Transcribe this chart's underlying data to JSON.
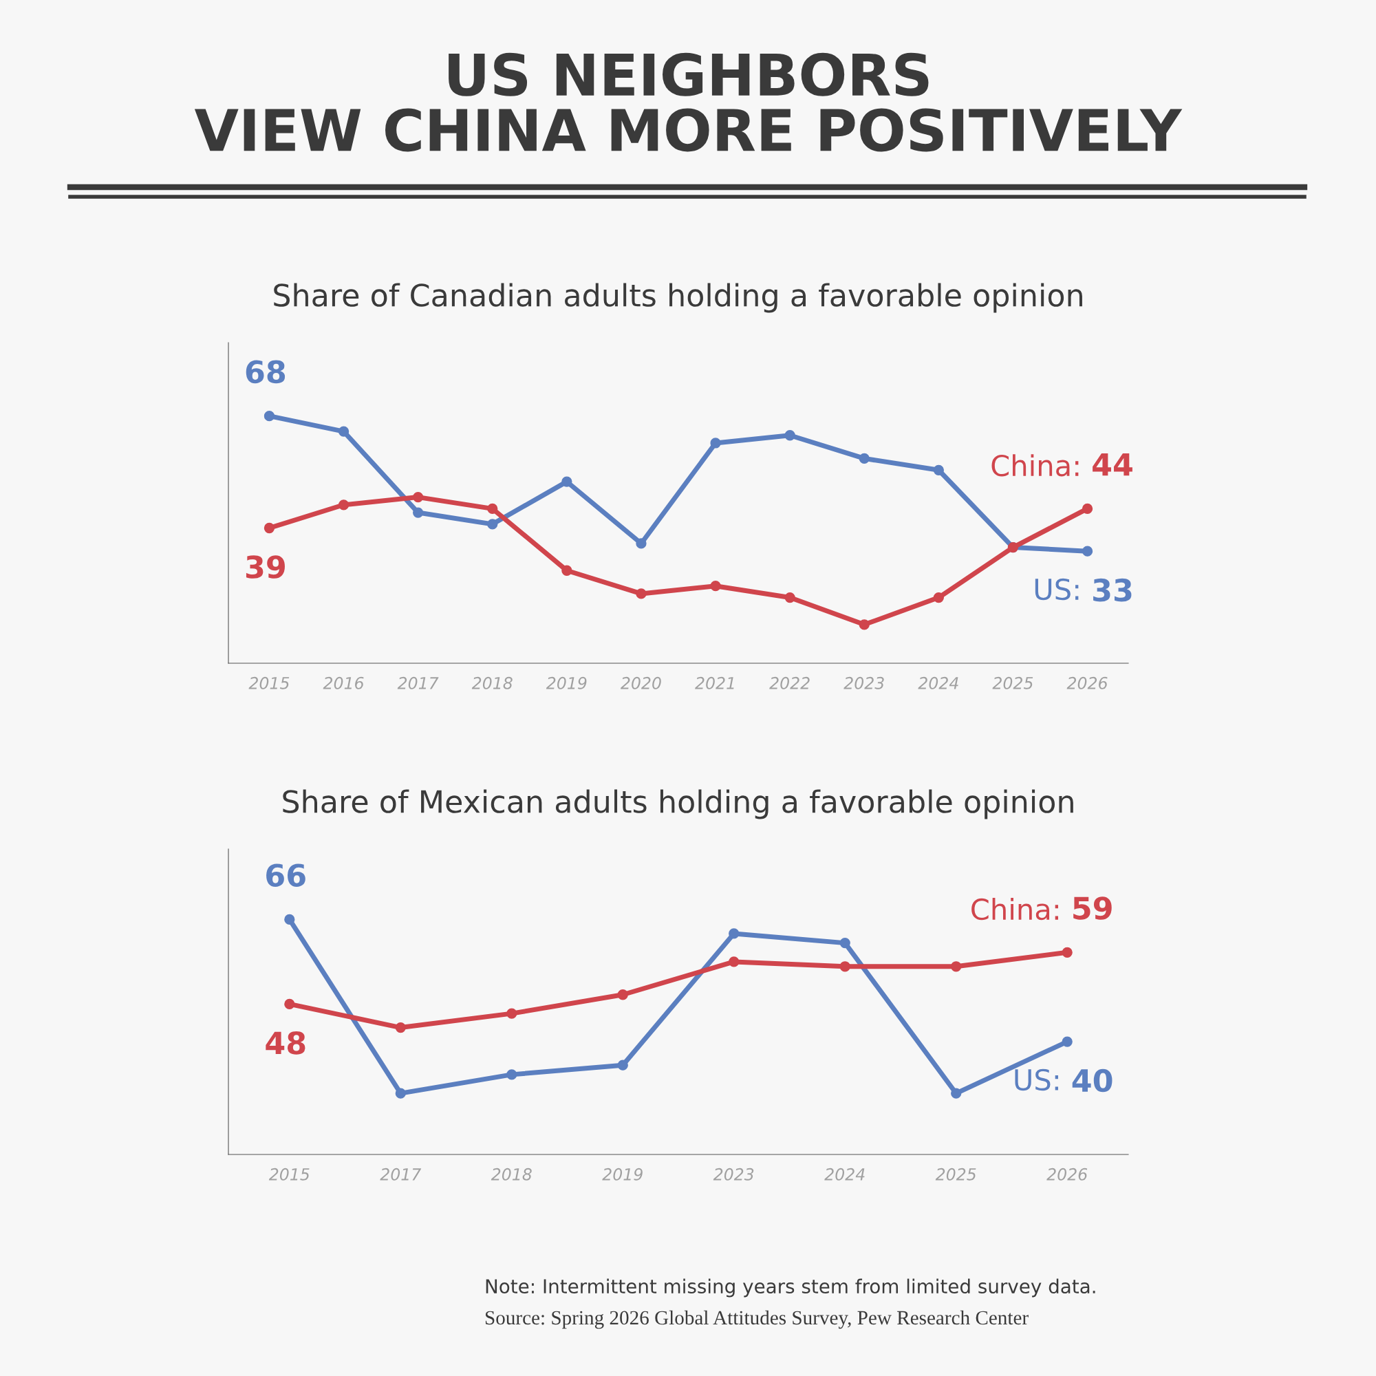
{
  "chart_data": [
    {
      "type": "line",
      "title": "US NEIGHBORS\nVIEW CHINA MORE POSITIVELY",
      "subtitle": "Share of Canadian adults holding a favorable opinion",
      "categories": [
        "2015",
        "2016",
        "2017",
        "2018",
        "2019",
        "2020",
        "2021",
        "2022",
        "2023",
        "2024",
        "2025",
        "2026"
      ],
      "series": [
        {
          "name": "US:",
          "color": "#5b7fc0",
          "values": [
            68,
            64,
            43,
            40,
            51,
            35,
            61,
            63,
            57,
            54,
            34,
            33
          ],
          "value_labels": [
            "68",
            null,
            null,
            null,
            null,
            null,
            null,
            null,
            null,
            null,
            null,
            "33"
          ]
        },
        {
          "name": "China:",
          "color": "#d0454c",
          "values": [
            39,
            45,
            47,
            44,
            28,
            22,
            24,
            21,
            14,
            21,
            34,
            44
          ],
          "value_labels": [
            "39",
            null,
            null,
            null,
            null,
            null,
            null,
            null,
            null,
            null,
            null,
            "44"
          ]
        }
      ],
      "ylim": [
        4,
        87
      ],
      "tick_labels": "x",
      "marker": "circle",
      "line_style": "solid",
      "grid": false,
      "legend": false
    },
    {
      "type": "line",
      "title": "Share of Mexican adults holding a favorable opinion",
      "categories": [
        "2015",
        "2017",
        "2018",
        "2019",
        "2023",
        "2024",
        "2025",
        "2026"
      ],
      "series": [
        {
          "name": "US:",
          "color": "#5b7fc0",
          "values": [
            66,
            29,
            33,
            35,
            63,
            61,
            29,
            40
          ],
          "value_labels": [
            "66",
            null,
            null,
            null,
            null,
            null,
            null,
            "40"
          ]
        },
        {
          "name": "China:",
          "color": "#d0454c",
          "values": [
            48,
            43,
            46,
            50,
            57,
            56,
            56,
            59
          ],
          "value_labels": [
            "48",
            null,
            null,
            null,
            null,
            null,
            null,
            "59"
          ]
        }
      ],
      "ylim": [
        16,
        81
      ],
      "tick_labels": "x",
      "marker": "circle",
      "line_style": "solid",
      "grid": false,
      "legend": false,
      "annotations": [
        "Note: Intermittent missing years stem from limited survey data.",
        "Source: Spring 2026 Global Attitudes Survey, Pew Research Center"
      ]
    }
  ]
}
